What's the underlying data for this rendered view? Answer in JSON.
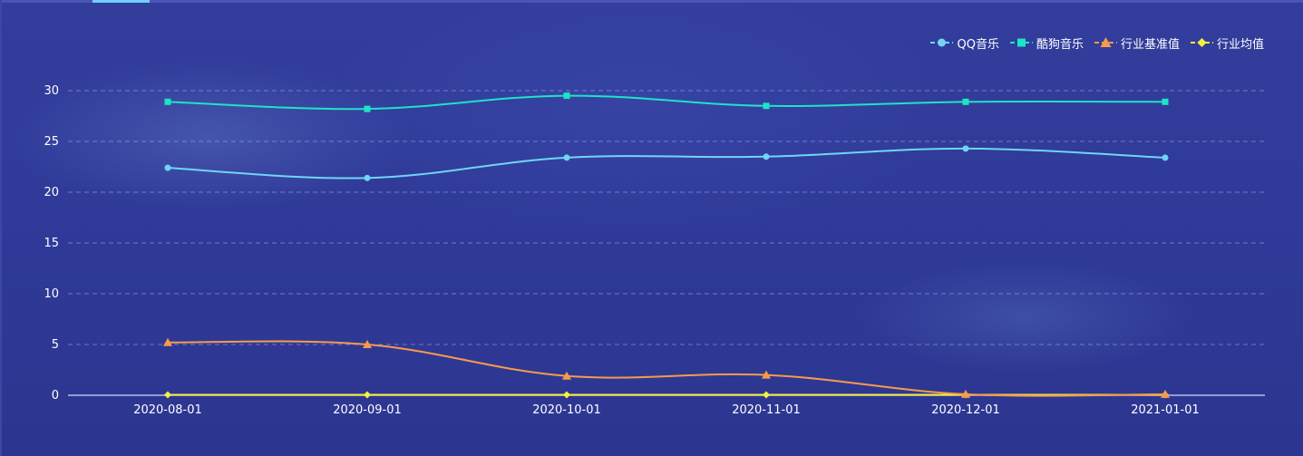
{
  "chart_data": {
    "type": "line",
    "categories": [
      "2020-08-01",
      "2020-09-01",
      "2020-10-01",
      "2020-11-01",
      "2020-12-01",
      "2021-01-01"
    ],
    "ylim": [
      0,
      30
    ],
    "yticks": [
      0,
      5,
      10,
      15,
      20,
      25,
      30
    ],
    "grid": true,
    "legend_position": "top-right",
    "series": [
      {
        "name": "QQ音乐",
        "values": [
          22.4,
          21.4,
          23.4,
          23.5,
          24.3,
          23.4
        ],
        "color": "#6fd5f5",
        "marker": "circle"
      },
      {
        "name": "酷狗音乐",
        "values": [
          28.9,
          28.2,
          29.5,
          28.5,
          28.9,
          28.9
        ],
        "color": "#1de4c5",
        "marker": "square"
      },
      {
        "name": "行业基准值",
        "values": [
          5.2,
          5.0,
          1.9,
          2.0,
          0.1,
          0.1
        ],
        "color": "#f89a4c",
        "marker": "triangle"
      },
      {
        "name": "行业均值",
        "values": [
          0.05,
          0.05,
          0.05,
          0.05,
          0.05,
          0.05
        ],
        "color": "#f7f03a",
        "marker": "diamond"
      }
    ]
  }
}
